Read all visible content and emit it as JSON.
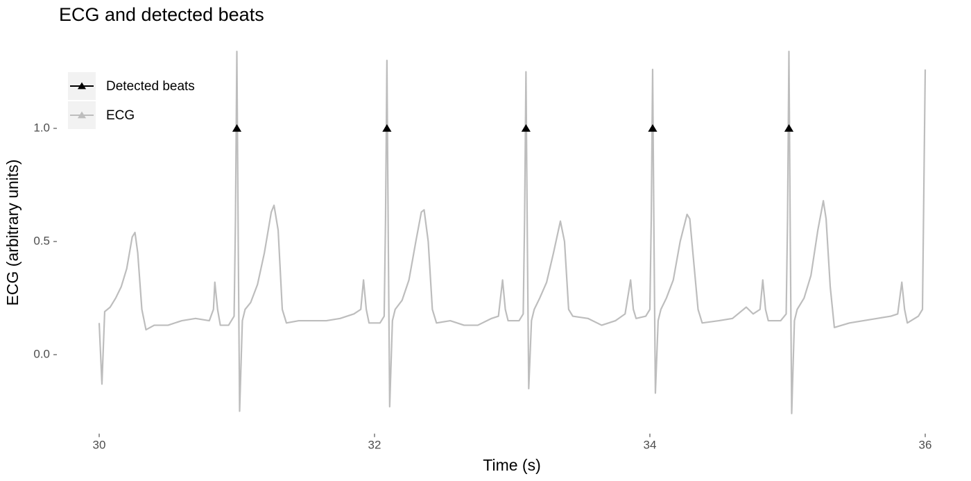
{
  "chart_data": {
    "type": "line",
    "title": "ECG and detected beats",
    "x_label": "Time (s)",
    "y_label": "ECG (arbitrary units)",
    "xlim": [
      29.7,
      36.3
    ],
    "xticks": [
      30,
      32,
      34,
      36
    ],
    "ylim": [
      -0.34,
      1.42
    ],
    "yticks": [
      {
        "value": 0,
        "label": "0.0"
      },
      0.5,
      {
        "value": 1,
        "label": "1.0"
      }
    ],
    "grid": false,
    "legend_position": "top-left",
    "series": [
      {
        "name": "Detected beats",
        "type": "scatter",
        "color": "#000000",
        "x": [
          31.0,
          32.09,
          33.1,
          34.02,
          35.01
        ],
        "values": [
          1,
          1,
          1,
          1,
          1
        ]
      },
      {
        "name": "ECG",
        "type": "line",
        "color": "#bdbdbd",
        "x": [
          30.0,
          30.02,
          30.04,
          30.08,
          30.12,
          30.16,
          30.2,
          30.24,
          30.26,
          30.28,
          30.31,
          30.34,
          30.4,
          30.5,
          30.6,
          30.7,
          30.8,
          30.83,
          30.84,
          30.86,
          30.88,
          30.94,
          30.98,
          30.99,
          31.0,
          31.01,
          31.02,
          31.04,
          31.06,
          31.1,
          31.15,
          31.2,
          31.25,
          31.27,
          31.3,
          31.33,
          31.36,
          31.45,
          31.55,
          31.65,
          31.75,
          31.85,
          31.9,
          31.92,
          31.94,
          31.96,
          32.04,
          32.07,
          32.08,
          32.09,
          32.1,
          32.11,
          32.13,
          32.15,
          32.2,
          32.25,
          32.3,
          32.34,
          32.36,
          32.39,
          32.42,
          32.45,
          32.55,
          32.65,
          32.75,
          32.85,
          32.9,
          32.93,
          32.95,
          32.97,
          33.05,
          33.08,
          33.09,
          33.1,
          33.11,
          33.12,
          33.14,
          33.16,
          33.2,
          33.25,
          33.3,
          33.35,
          33.38,
          33.41,
          33.44,
          33.55,
          33.65,
          33.75,
          33.82,
          33.86,
          33.88,
          33.9,
          33.97,
          34.0,
          34.01,
          34.02,
          34.03,
          34.04,
          34.06,
          34.08,
          34.12,
          34.17,
          34.22,
          34.27,
          34.29,
          34.32,
          34.35,
          34.38,
          34.5,
          34.6,
          34.7,
          34.75,
          34.8,
          34.82,
          34.84,
          34.86,
          34.95,
          34.99,
          35.0,
          35.01,
          35.02,
          35.03,
          35.05,
          35.07,
          35.12,
          35.17,
          35.22,
          35.26,
          35.28,
          35.31,
          35.34,
          35.45,
          35.55,
          35.65,
          35.75,
          35.8,
          35.83,
          35.85,
          35.87,
          35.95,
          35.98,
          36.0
        ],
        "values": [
          0.14,
          -0.13,
          0.19,
          0.21,
          0.25,
          0.3,
          0.38,
          0.52,
          0.54,
          0.45,
          0.2,
          0.11,
          0.13,
          0.13,
          0.15,
          0.16,
          0.15,
          0.2,
          0.32,
          0.2,
          0.13,
          0.13,
          0.17,
          0.6,
          1.34,
          0.5,
          -0.25,
          0.15,
          0.2,
          0.23,
          0.31,
          0.45,
          0.63,
          0.66,
          0.55,
          0.2,
          0.14,
          0.15,
          0.15,
          0.15,
          0.16,
          0.18,
          0.2,
          0.33,
          0.2,
          0.14,
          0.14,
          0.17,
          0.6,
          1.3,
          0.5,
          -0.23,
          0.15,
          0.2,
          0.24,
          0.33,
          0.5,
          0.63,
          0.64,
          0.5,
          0.2,
          0.14,
          0.15,
          0.13,
          0.13,
          0.16,
          0.17,
          0.33,
          0.2,
          0.15,
          0.15,
          0.18,
          0.6,
          1.25,
          0.5,
          -0.15,
          0.15,
          0.2,
          0.25,
          0.32,
          0.45,
          0.59,
          0.5,
          0.2,
          0.17,
          0.16,
          0.13,
          0.15,
          0.18,
          0.33,
          0.2,
          0.16,
          0.17,
          0.2,
          0.6,
          1.26,
          0.5,
          -0.17,
          0.15,
          0.2,
          0.25,
          0.33,
          0.5,
          0.62,
          0.6,
          0.4,
          0.2,
          0.14,
          0.15,
          0.16,
          0.21,
          0.18,
          0.2,
          0.33,
          0.2,
          0.15,
          0.15,
          0.18,
          0.6,
          1.34,
          0.5,
          -0.26,
          0.15,
          0.2,
          0.25,
          0.35,
          0.55,
          0.68,
          0.6,
          0.3,
          0.12,
          0.14,
          0.15,
          0.16,
          0.17,
          0.18,
          0.32,
          0.2,
          0.14,
          0.17,
          0.2,
          1.26
        ]
      }
    ]
  }
}
